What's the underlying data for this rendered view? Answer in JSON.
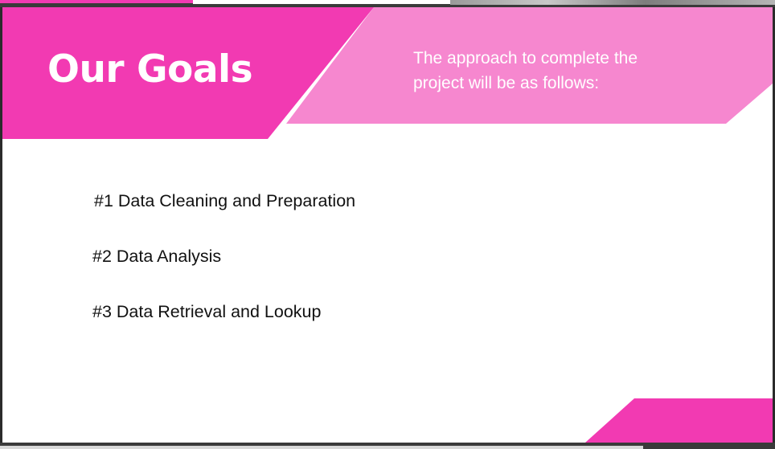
{
  "slide": {
    "title": "Our Goals",
    "subtitle": "The approach to complete the project will be as follows:",
    "goals": [
      "#1 Data Cleaning and Preparation",
      "#2 Data Analysis",
      "#3 Data Retrieval and Lookup"
    ]
  },
  "colors": {
    "primary_pink": "#f23ab2",
    "light_pink": "#f687cf",
    "text_dark": "#111111",
    "text_light": "#ffffff",
    "frame": "#2b2b2b"
  }
}
